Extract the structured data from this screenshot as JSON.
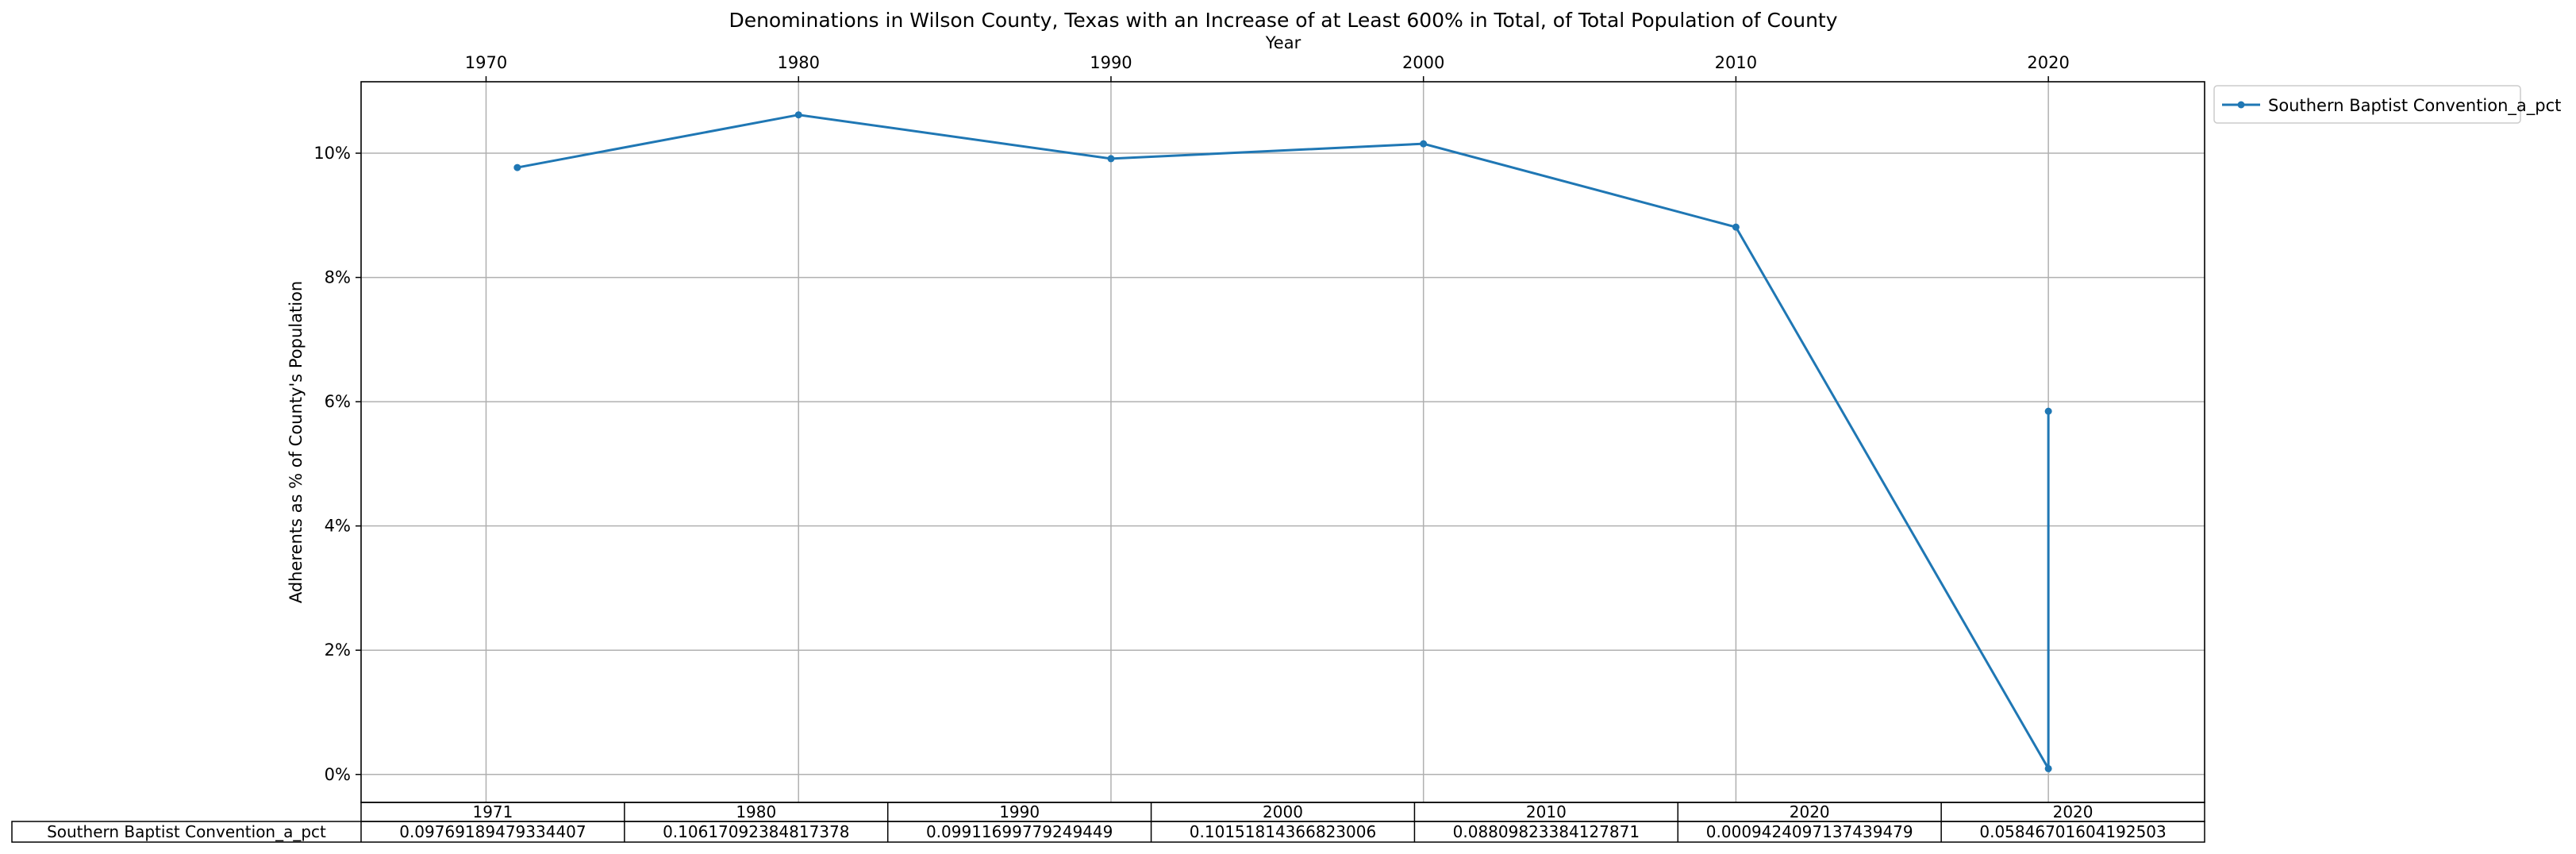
{
  "chart_data": {
    "type": "line",
    "title": "Denominations in Wilson County, Texas with an Increase of at Least 600% in Total, of Total Population of County",
    "xlabel": "Year",
    "ylabel": "Adherents as % of County's Population",
    "x_axis_position": "top",
    "xlim": [
      1966,
      2025
    ],
    "ylim": [
      -0.0045,
      0.1115
    ],
    "x_ticks": [
      {
        "value": 1970,
        "label": "1970"
      },
      {
        "value": 1980,
        "label": "1980"
      },
      {
        "value": 1990,
        "label": "1990"
      },
      {
        "value": 2000,
        "label": "2000"
      },
      {
        "value": 2010,
        "label": "2010"
      },
      {
        "value": 2020,
        "label": "2020"
      }
    ],
    "y_ticks": [
      {
        "value": 0.0,
        "label": "0%"
      },
      {
        "value": 0.02,
        "label": "2%"
      },
      {
        "value": 0.04,
        "label": "4%"
      },
      {
        "value": 0.06,
        "label": "6%"
      },
      {
        "value": 0.08,
        "label": "8%"
      },
      {
        "value": 0.1,
        "label": "10%"
      }
    ],
    "grid": true,
    "legend_placement": "outside-top-right",
    "series": [
      {
        "name": "Southern Baptist Convention_a_pct",
        "color": "#1f77b4",
        "marker": "circle",
        "x": [
          1971,
          1980,
          1990,
          2000,
          2010,
          2020,
          2020
        ],
        "y": [
          0.09769189479334407,
          0.10617092384817378,
          0.09911699779249449,
          0.10151814366823006,
          0.08809823384127871,
          0.0009424097137439479,
          0.05846701604192503
        ]
      }
    ],
    "table": {
      "row_label": "Southern Baptist Convention_a_pct",
      "col_labels": [
        "1971",
        "1980",
        "1990",
        "2000",
        "2010",
        "2020",
        "2020"
      ],
      "cells": [
        "0.09769189479334407",
        "0.10617092384817378",
        "0.09911699779249449",
        "0.10151814366823006",
        "0.08809823384127871",
        "0.0009424097137439479",
        "0.05846701604192503"
      ]
    }
  }
}
